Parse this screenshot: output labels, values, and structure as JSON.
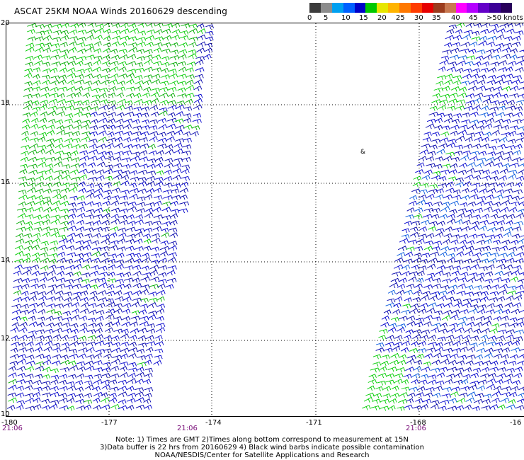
{
  "header": {
    "title": "ASCAT 25KM NOAA Winds 20160629 descending"
  },
  "colorbar": {
    "labels": [
      "0",
      "5",
      "10",
      "15",
      "20",
      "25",
      "30",
      "35",
      "40",
      "45",
      ">50 knots"
    ],
    "colors": [
      "#3c3c3c",
      "#8c8c8c",
      "#00a0f0",
      "#0060ff",
      "#0000c8",
      "#00c800",
      "#e6e600",
      "#ffb400",
      "#ff7800",
      "#ff3c00",
      "#e60000",
      "#9b3c1e",
      "#c87850",
      "#ff00ff",
      "#b400ff",
      "#6400c8",
      "#3c0096",
      "#28005a"
    ]
  },
  "map": {
    "lat_labels": [
      "20",
      "18",
      "16",
      "14",
      "12",
      "10"
    ],
    "lon_labels": [
      "-180",
      "-177",
      "-174",
      "-171",
      "-168",
      "-16"
    ],
    "time_labels": [
      "21:06",
      "21:06",
      "21:06"
    ],
    "island_marker": "&"
  },
  "footer": {
    "note1": "Note: 1) Times are GMT 2)Times along bottom correspond to measurement at 15N",
    "note2": "3)Data buffer is 22 hrs from 20160629 4) Black wind barbs indicate possible contamination",
    "note3": "NOAA/NESDIS/Center for Satellite Applications and Research"
  },
  "swaths": {
    "left_colors": [
      "#00cc00",
      "#00aa00",
      "#0000cc",
      "#0000aa"
    ],
    "right_colors": [
      "#0000cc",
      "#0000aa",
      "#0055dd",
      "#00cc00"
    ]
  }
}
